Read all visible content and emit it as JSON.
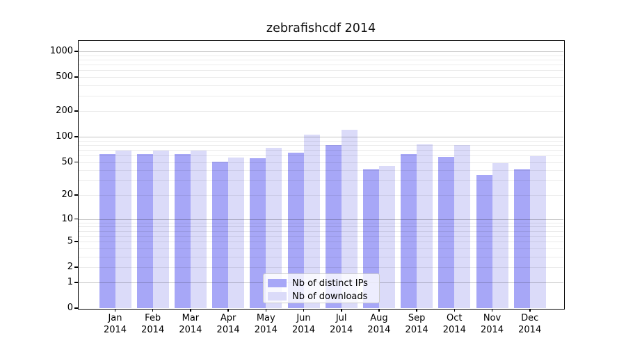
{
  "chart_data": {
    "type": "bar",
    "title": "zebrafishcdf 2014",
    "categories": [
      "Jan",
      "Feb",
      "Mar",
      "Apr",
      "May",
      "Jun",
      "Jul",
      "Aug",
      "Sep",
      "Oct",
      "Nov",
      "Dec"
    ],
    "category_year": "2014",
    "series": [
      {
        "name": "Nb of distinct IPs",
        "color": "#a7a7f7",
        "values": [
          62,
          62,
          62,
          50,
          55,
          65,
          80,
          41,
          62,
          58,
          35,
          41
        ]
      },
      {
        "name": "Nb of downloads",
        "color": "#dbdbf9",
        "values": [
          68,
          68,
          68,
          57,
          74,
          105,
          120,
          45,
          81,
          79,
          49,
          59
        ]
      }
    ],
    "yscale": "log1p",
    "yticks": [
      1000,
      500,
      200,
      100,
      50,
      20,
      10,
      5,
      2,
      1,
      0
    ],
    "major_gridlines": [
      1,
      10,
      100,
      1000
    ],
    "minor_gridline_mantissas": [
      2,
      3,
      4,
      5,
      6,
      7,
      8,
      9
    ],
    "minor_gridline_decades": [
      1,
      10,
      100
    ],
    "ylim": [
      0,
      1320
    ],
    "grid": true,
    "legend_position": "lower center",
    "xlabel": "",
    "ylabel": ""
  },
  "colors": {
    "bar_ips": "#a7a7f7",
    "bar_downloads": "#dbdbf9",
    "major_grid": "rgba(0,0,0,0.24)",
    "minor_grid": "rgba(0,0,0,0.08)",
    "axis": "#000000",
    "background": "#ffffff"
  }
}
